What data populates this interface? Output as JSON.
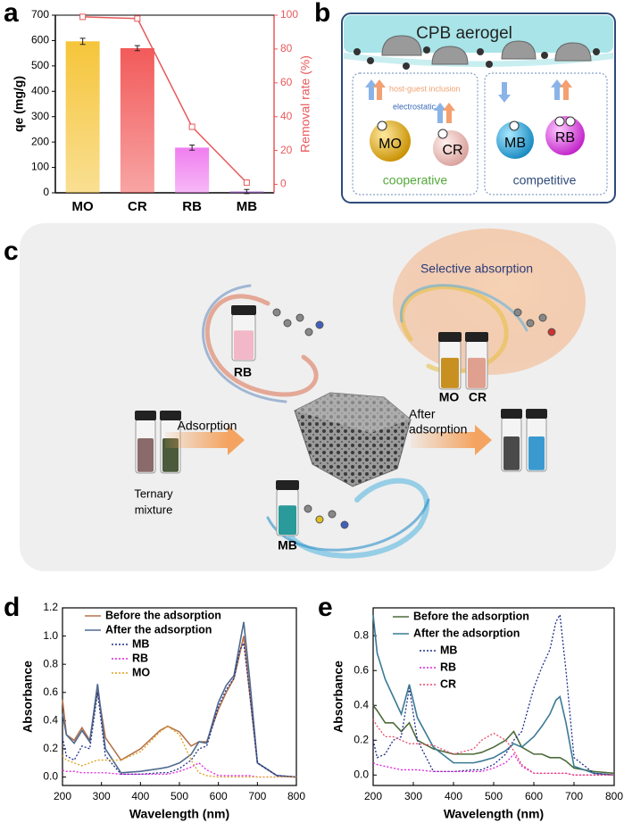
{
  "panel_letters": {
    "a": "a",
    "b": "b",
    "c": "c",
    "d": "d",
    "e": "e"
  },
  "diagram_b": {
    "title": "CPB aerogel",
    "host_guest": "host-guest inclusion",
    "electrostatic": "electrostatic",
    "dyes": [
      "MO",
      "CR",
      "MB",
      "RB"
    ],
    "cooperative": "cooperative",
    "competitive": "competitive"
  },
  "diagram_c": {
    "selective": "Selective absorption",
    "rb": "RB",
    "mo": "MO",
    "cr": "CR",
    "mb": "MB",
    "adsorption": "Adsorption",
    "after_adsorption": [
      "After",
      "adsorption"
    ],
    "ternary": [
      "Ternary",
      "mixture"
    ]
  },
  "chart_data": [
    {
      "type": "bar",
      "y_label": "qe (mg/g)",
      "y2_label": "Removal rate (%)",
      "categories": [
        "MO",
        "CR",
        "RB",
        "MB"
      ],
      "ylim": [
        0,
        700
      ],
      "yticks": [
        0,
        100,
        200,
        300,
        400,
        500,
        600,
        700
      ],
      "y2lim": [
        -5,
        100
      ],
      "y2ticks": [
        0,
        20,
        40,
        60,
        80,
        100
      ],
      "series": [
        {
          "type": "bar",
          "colors": [
            "#f5c53a",
            "#f25a5a",
            "#f07ef0",
            "#a35bd0"
          ],
          "values": [
            597,
            570,
            178,
            5
          ],
          "errors": [
            12,
            10,
            10,
            8
          ]
        },
        {
          "type": "line",
          "axis": "y2",
          "color": "#e8595c",
          "values": [
            99,
            98,
            34,
            1
          ],
          "errors": [
            1,
            1.2,
            1.5,
            1.5
          ]
        }
      ]
    },
    {
      "type": "line",
      "x_label": "Wavelength (nm)",
      "y_label": "Absorbance",
      "legend": "upper left",
      "xlim": [
        200,
        800
      ],
      "xticks": [
        200,
        300,
        400,
        500,
        600,
        700,
        800
      ],
      "ylim": [
        -0.06,
        1.2
      ],
      "yticks": [
        {
          "value": 0,
          "label": "0.0"
        },
        0.2,
        0.4,
        0.6,
        0.8,
        {
          "value": 1,
          "label": "1.0"
        },
        1.2
      ],
      "x": [
        200,
        210,
        230,
        250,
        270,
        290,
        310,
        350,
        400,
        450,
        470,
        500,
        530,
        550,
        570,
        600,
        620,
        640,
        655,
        665,
        680,
        700,
        750,
        800
      ],
      "series": [
        {
          "name": "Before the adsorption",
          "color": "#b5744e",
          "style": "solid",
          "values": [
            0.55,
            0.3,
            0.26,
            0.35,
            0.26,
            0.62,
            0.28,
            0.12,
            0.2,
            0.33,
            0.36,
            0.32,
            0.22,
            0.25,
            0.25,
            0.48,
            0.6,
            0.7,
            0.88,
            1.0,
            0.6,
            0.1,
            0.01,
            0
          ]
        },
        {
          "name": "After the adsorption",
          "color": "#4f6a8f",
          "style": "solid",
          "values": [
            0.45,
            0.3,
            0.24,
            0.33,
            0.25,
            0.66,
            0.2,
            0.03,
            0.04,
            0.06,
            0.07,
            0.1,
            0.16,
            0.25,
            0.24,
            0.53,
            0.65,
            0.72,
            0.95,
            1.1,
            0.7,
            0.1,
            0.01,
            0
          ]
        },
        {
          "name": "MB",
          "color": "#1f2f8a",
          "style": "dotted",
          "values": [
            0.28,
            0.15,
            0.12,
            0.22,
            0.2,
            0.6,
            0.15,
            0.02,
            0.02,
            0.03,
            0.03,
            0.06,
            0.12,
            0.2,
            0.22,
            0.5,
            0.62,
            0.7,
            0.9,
            0.95,
            0.6,
            0.1,
            0.01,
            0
          ]
        },
        {
          "name": "RB",
          "color": "#e020e0",
          "style": "dotted",
          "values": [
            0.05,
            0.04,
            0.04,
            0.03,
            0.03,
            0.03,
            0.03,
            0.02,
            0.02,
            0.02,
            0.02,
            0.04,
            0.07,
            0.1,
            0.05,
            0.01,
            0.01,
            0.01,
            0.01,
            0.01,
            0.01,
            0,
            0,
            0
          ]
        },
        {
          "name": "MO",
          "color": "#e0a020",
          "style": "dotted",
          "values": [
            0.15,
            0.12,
            0.1,
            0.08,
            0.1,
            0.12,
            0.12,
            0.12,
            0.18,
            0.32,
            0.36,
            0.3,
            0.12,
            0.03,
            0.01,
            0,
            0,
            0,
            0,
            0,
            0,
            0,
            0,
            0
          ]
        }
      ]
    },
    {
      "type": "line",
      "x_label": "Wavelength (nm)",
      "y_label": "Absorbance",
      "legend": "upper left",
      "xlim": [
        200,
        800
      ],
      "xticks": [
        200,
        300,
        400,
        500,
        600,
        700,
        800
      ],
      "ylim": [
        -0.06,
        0.96
      ],
      "yticks": [
        {
          "value": 0,
          "label": "0.0"
        },
        0.2,
        0.4,
        0.6,
        0.8
      ],
      "x": [
        200,
        210,
        230,
        250,
        270,
        290,
        310,
        350,
        400,
        450,
        470,
        500,
        530,
        550,
        570,
        600,
        620,
        640,
        655,
        665,
        680,
        700,
        750,
        800
      ],
      "series": [
        {
          "name": "Before the adsorption",
          "color": "#4d6b3a",
          "style": "solid",
          "values": [
            0.4,
            0.37,
            0.3,
            0.3,
            0.25,
            0.3,
            0.2,
            0.15,
            0.12,
            0.12,
            0.13,
            0.16,
            0.2,
            0.25,
            0.16,
            0.12,
            0.12,
            0.1,
            0.1,
            0.1,
            0.08,
            0.04,
            0.02,
            0.01
          ]
        },
        {
          "name": "After the adsorption",
          "color": "#3a7a96",
          "style": "solid",
          "values": [
            0.92,
            0.7,
            0.55,
            0.45,
            0.35,
            0.52,
            0.33,
            0.16,
            0.07,
            0.07,
            0.08,
            0.1,
            0.14,
            0.18,
            0.16,
            0.22,
            0.28,
            0.35,
            0.43,
            0.45,
            0.3,
            0.05,
            0.01,
            0
          ]
        },
        {
          "name": "MB",
          "color": "#1f2f8a",
          "style": "dotted",
          "values": [
            0.2,
            0.1,
            0.12,
            0.2,
            0.22,
            0.5,
            0.2,
            0.02,
            0.02,
            0.03,
            0.03,
            0.06,
            0.12,
            0.2,
            0.25,
            0.5,
            0.62,
            0.72,
            0.88,
            0.92,
            0.6,
            0.1,
            0.01,
            0
          ]
        },
        {
          "name": "RB",
          "color": "#e020e0",
          "style": "dotted",
          "values": [
            0.07,
            0.06,
            0.05,
            0.04,
            0.03,
            0.03,
            0.03,
            0.02,
            0.02,
            0.02,
            0.02,
            0.04,
            0.07,
            0.12,
            0.05,
            0.01,
            0.01,
            0.01,
            0.01,
            0.01,
            0.01,
            0,
            0,
            0
          ]
        },
        {
          "name": "CR",
          "color": "#e84a6a",
          "style": "dotted",
          "values": [
            0.32,
            0.28,
            0.22,
            0.22,
            0.2,
            0.18,
            0.18,
            0.17,
            0.12,
            0.15,
            0.2,
            0.24,
            0.2,
            0.14,
            0.06,
            0.01,
            0.01,
            0.01,
            0.01,
            0.01,
            0.01,
            0,
            0,
            0
          ]
        }
      ]
    }
  ]
}
